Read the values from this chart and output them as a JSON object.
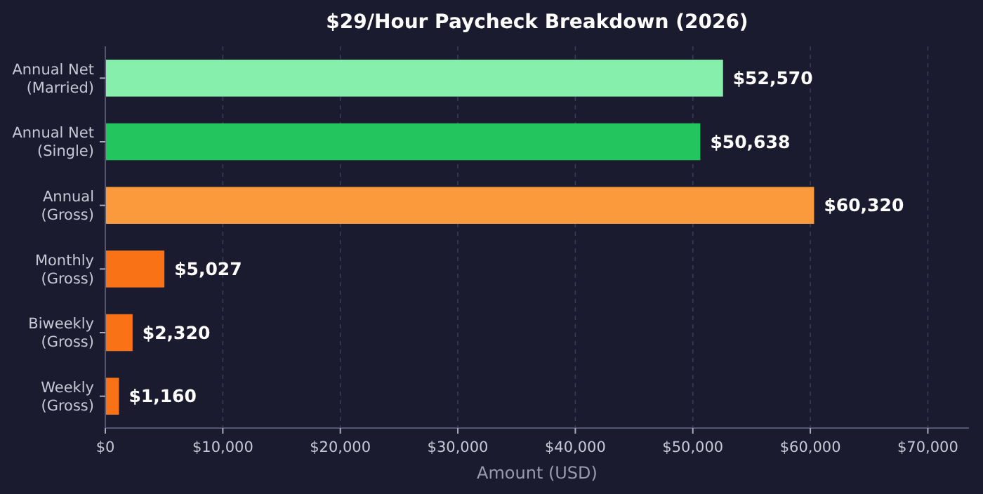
{
  "chart_data": {
    "type": "bar",
    "orientation": "horizontal",
    "title": "$29/Hour Paycheck Breakdown (2026)",
    "xlabel": "Amount (USD)",
    "categories": [
      "Annual Net\n(Married)",
      "Annual Net\n(Single)",
      "Annual\n(Gross)",
      "Monthly\n(Gross)",
      "Biweekly\n(Gross)",
      "Weekly\n(Gross)"
    ],
    "values": [
      52570,
      50638,
      60320,
      5027,
      2320,
      1160
    ],
    "colors": [
      "#86efac",
      "#22c55e",
      "#fb9a3c",
      "#f97316",
      "#f97316",
      "#f97316"
    ],
    "value_labels": [
      "$52,570",
      "$50,638",
      "$60,320",
      "$5,027",
      "$2,320",
      "$1,160"
    ],
    "xlim": [
      0,
      73500
    ],
    "xticks": [
      {
        "value": 0,
        "label": "$0"
      },
      {
        "value": 10000,
        "label": "$10,000"
      },
      {
        "value": 20000,
        "label": "$20,000"
      },
      {
        "value": 30000,
        "label": "$30,000"
      },
      {
        "value": 40000,
        "label": "$40,000"
      },
      {
        "value": 50000,
        "label": "$50,000"
      },
      {
        "value": 60000,
        "label": "$60,000"
      },
      {
        "value": 70000,
        "label": "$70,000"
      }
    ],
    "grid": "x"
  }
}
